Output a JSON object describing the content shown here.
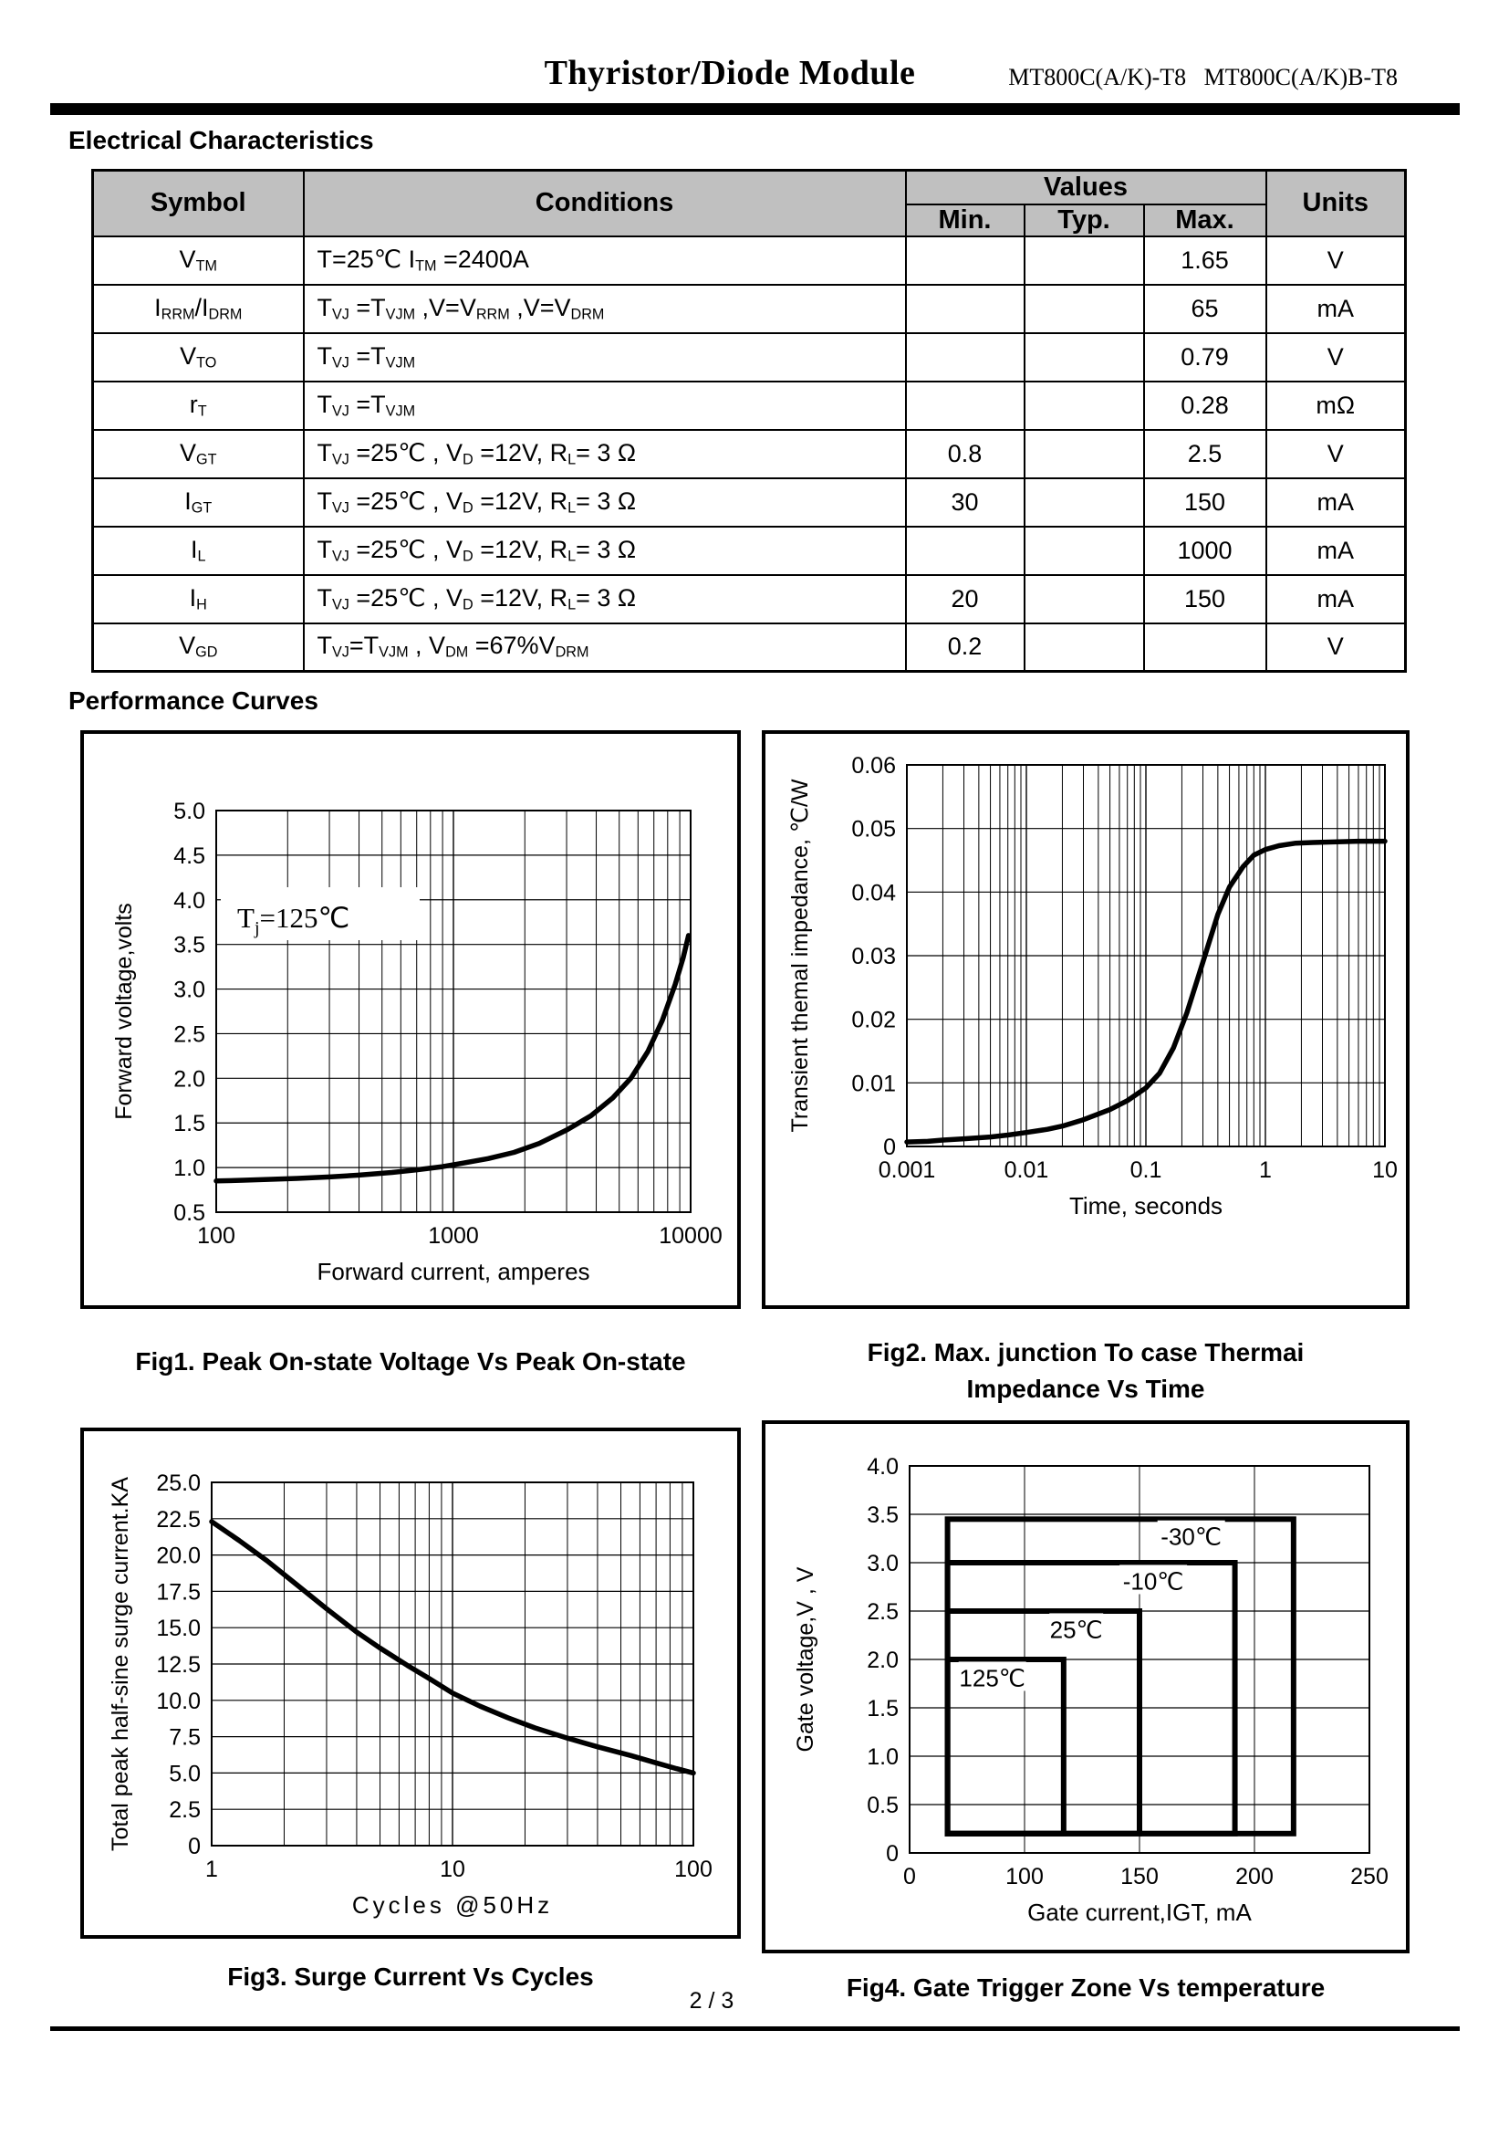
{
  "header": {
    "title": "Thyristor/Diode Module",
    "part_numbers": "MT800C(A/K)-T8   MT800C(A/K)B-T8"
  },
  "sections": {
    "electrical": "Electrical Characteristics",
    "curves": "Performance Curves"
  },
  "table": {
    "col_symbol": "Symbol",
    "col_conditions": "Conditions",
    "col_values": "Values",
    "col_min": "Min.",
    "col_typ": "Typ.",
    "col_max": "Max.",
    "col_units": "Units",
    "rows": [
      {
        "symbol": [
          [
            "V"
          ],
          [
            "TM",
            "s"
          ]
        ],
        "conditions": [
          [
            "T=25℃  I"
          ],
          [
            "TM",
            "s"
          ],
          [
            " =2400A"
          ]
        ],
        "min": "",
        "typ": "",
        "max": "1.65",
        "units": "V"
      },
      {
        "symbol": [
          [
            "I"
          ],
          [
            "RRM",
            "s"
          ],
          [
            "/I"
          ],
          [
            "DRM",
            "s"
          ]
        ],
        "conditions": [
          [
            "T"
          ],
          [
            "VJ",
            "s"
          ],
          [
            " =T"
          ],
          [
            "VJM",
            "s"
          ],
          [
            " ,V=V"
          ],
          [
            "RRM",
            "s"
          ],
          [
            " ,V=V"
          ],
          [
            "DRM",
            "s"
          ]
        ],
        "min": "",
        "typ": "",
        "max": "65",
        "units": "mA"
      },
      {
        "symbol": [
          [
            "V"
          ],
          [
            "TO",
            "s"
          ]
        ],
        "conditions": [
          [
            "T"
          ],
          [
            "VJ",
            "s"
          ],
          [
            " =T"
          ],
          [
            "VJM",
            "s"
          ]
        ],
        "min": "",
        "typ": "",
        "max": "0.79",
        "units": "V"
      },
      {
        "symbol": [
          [
            "r"
          ],
          [
            "T",
            "s"
          ]
        ],
        "conditions": [
          [
            "T"
          ],
          [
            "VJ",
            "s"
          ],
          [
            " =T"
          ],
          [
            "VJM",
            "s"
          ]
        ],
        "min": "",
        "typ": "",
        "max": "0.28",
        "units": "mΩ"
      },
      {
        "symbol": [
          [
            "V"
          ],
          [
            "GT",
            "s"
          ]
        ],
        "conditions": [
          [
            "T"
          ],
          [
            "VJ",
            "s"
          ],
          [
            " =25℃ , V"
          ],
          [
            "D",
            "s"
          ],
          [
            " =12V,   R"
          ],
          [
            "L",
            "s"
          ],
          [
            "= 3 Ω"
          ]
        ],
        "min": "0.8",
        "typ": "",
        "max": "2.5",
        "units": "V"
      },
      {
        "symbol": [
          [
            "I"
          ],
          [
            "GT",
            "s"
          ]
        ],
        "conditions": [
          [
            "T"
          ],
          [
            "VJ",
            "s"
          ],
          [
            " =25℃ , V"
          ],
          [
            "D",
            "s"
          ],
          [
            " =12V,   R"
          ],
          [
            "L",
            "s"
          ],
          [
            "= 3 Ω"
          ]
        ],
        "min": "30",
        "typ": "",
        "max": "150",
        "units": "mA"
      },
      {
        "symbol": [
          [
            "I"
          ],
          [
            "L",
            "s"
          ]
        ],
        "conditions": [
          [
            "T"
          ],
          [
            "VJ",
            "s"
          ],
          [
            " =25℃ , V"
          ],
          [
            "D",
            "s"
          ],
          [
            " =12V,   R"
          ],
          [
            "L",
            "s"
          ],
          [
            "= 3 Ω"
          ]
        ],
        "min": "",
        "typ": "",
        "max": "1000",
        "units": "mA"
      },
      {
        "symbol": [
          [
            "I"
          ],
          [
            "H",
            "s"
          ]
        ],
        "conditions": [
          [
            "T"
          ],
          [
            "VJ",
            "s"
          ],
          [
            " =25℃ , V"
          ],
          [
            "D",
            "s"
          ],
          [
            " =12V,   R"
          ],
          [
            "L",
            "s"
          ],
          [
            "= 3 Ω"
          ]
        ],
        "min": "20",
        "typ": "",
        "max": "150",
        "units": "mA"
      },
      {
        "symbol": [
          [
            "V"
          ],
          [
            "GD",
            "s"
          ]
        ],
        "conditions": [
          [
            "T"
          ],
          [
            "VJ",
            "s"
          ],
          [
            "=T"
          ],
          [
            "VJM",
            "s"
          ],
          [
            " , V"
          ],
          [
            "DM",
            "s"
          ],
          [
            " =67%V"
          ],
          [
            "DRM",
            "s"
          ]
        ],
        "min": "0.2",
        "typ": "",
        "max": "",
        "units": "V"
      }
    ]
  },
  "figures": [
    {
      "caption": "Fig1. Peak On-state Voltage Vs Peak On-state"
    },
    {
      "caption_line1": "Fig2. Max. junction To case Thermai",
      "caption_line2": "Impedance Vs Time"
    },
    {
      "caption": "Fig3. Surge Current Vs Cycles"
    },
    {
      "caption": "Fig4. Gate Trigger Zone Vs temperature"
    }
  ],
  "chart_data": [
    {
      "id": "fig1",
      "type": "line",
      "xscale": "log",
      "title": "Peak On-state Voltage Vs Peak On-state Current",
      "xlabel": "Forward current,  amperes",
      "ylabel": "Forward voltage,volts",
      "xlim": [
        100,
        10000
      ],
      "ylim": [
        0.5,
        5.0
      ],
      "ystep": 0.5,
      "grid": true,
      "xticks": [
        [
          100,
          "100"
        ],
        [
          1000,
          "1000"
        ],
        [
          10000,
          "10000"
        ]
      ],
      "yticks": [
        [
          5,
          "5.0"
        ],
        [
          4.5,
          "4.5"
        ],
        [
          4,
          "4.0"
        ],
        [
          3.5,
          "3.5"
        ],
        [
          3,
          "3.0"
        ],
        [
          2.5,
          "2.5"
        ],
        [
          2,
          "2.0"
        ],
        [
          1.5,
          "1.5"
        ],
        [
          1,
          "1.0"
        ],
        [
          0.5,
          "0.5"
        ]
      ],
      "annotation": {
        "segments": [
          [
            "T"
          ],
          [
            "j",
            "s"
          ],
          [
            "=125℃"
          ]
        ]
      },
      "points": [
        [
          100,
          0.85
        ],
        [
          130,
          0.858
        ],
        [
          170,
          0.868
        ],
        [
          220,
          0.878
        ],
        [
          300,
          0.895
        ],
        [
          400,
          0.915
        ],
        [
          550,
          0.945
        ],
        [
          700,
          0.975
        ],
        [
          900,
          1.01
        ],
        [
          1100,
          1.05
        ],
        [
          1400,
          1.1
        ],
        [
          1800,
          1.17
        ],
        [
          2300,
          1.27
        ],
        [
          3000,
          1.42
        ],
        [
          3800,
          1.58
        ],
        [
          4700,
          1.78
        ],
        [
          5600,
          2.0
        ],
        [
          6600,
          2.3
        ],
        [
          7600,
          2.65
        ],
        [
          8600,
          3.05
        ],
        [
          9300,
          3.35
        ],
        [
          9800,
          3.6
        ]
      ]
    },
    {
      "id": "fig2",
      "type": "line",
      "xscale": "log",
      "title": "Max. junction To case Thermal Impedance Vs Time",
      "xlabel": "Time,  seconds",
      "ylabel": "Transient themal impedance,  ℃/W",
      "xlim": [
        0.001,
        10
      ],
      "ylim": [
        0,
        0.06
      ],
      "ystep": 0.01,
      "grid": true,
      "xticks": [
        [
          0.001,
          "0.001"
        ],
        [
          0.01,
          "0.01"
        ],
        [
          0.1,
          "0.1"
        ],
        [
          1,
          "1"
        ],
        [
          10,
          "10"
        ]
      ],
      "yticks": [
        [
          0.06,
          "0.06"
        ],
        [
          0.05,
          "0.05"
        ],
        [
          0.04,
          "0.04"
        ],
        [
          0.03,
          "0.03"
        ],
        [
          0.02,
          "0.02"
        ],
        [
          0.01,
          "0.01"
        ],
        [
          0,
          "0"
        ]
      ],
      "points": [
        [
          0.001,
          0.0007
        ],
        [
          0.0015,
          0.0008
        ],
        [
          0.002,
          0.001
        ],
        [
          0.003,
          0.0012
        ],
        [
          0.005,
          0.0015
        ],
        [
          0.007,
          0.0018
        ],
        [
          0.01,
          0.0022
        ],
        [
          0.015,
          0.0027
        ],
        [
          0.02,
          0.0032
        ],
        [
          0.03,
          0.0042
        ],
        [
          0.05,
          0.0058
        ],
        [
          0.07,
          0.0072
        ],
        [
          0.1,
          0.0092
        ],
        [
          0.13,
          0.0115
        ],
        [
          0.17,
          0.0155
        ],
        [
          0.22,
          0.021
        ],
        [
          0.3,
          0.029
        ],
        [
          0.4,
          0.0365
        ],
        [
          0.5,
          0.0408
        ],
        [
          0.65,
          0.044
        ],
        [
          0.8,
          0.0458
        ],
        [
          1,
          0.0467
        ],
        [
          1.3,
          0.0473
        ],
        [
          1.8,
          0.0477
        ],
        [
          2.5,
          0.0478
        ],
        [
          4,
          0.0479
        ],
        [
          6,
          0.048
        ],
        [
          10,
          0.048
        ]
      ]
    },
    {
      "id": "fig3",
      "type": "line",
      "xscale": "log",
      "title": "Surge Current Vs Cycles",
      "xlabel": "Cycles  @50Hz",
      "ylabel": "Total peak half-sine surge current.KA",
      "xlim": [
        1,
        100
      ],
      "ylim": [
        0,
        25
      ],
      "ystep": 2.5,
      "grid": true,
      "xticks": [
        [
          1,
          "1"
        ],
        [
          10,
          "10"
        ],
        [
          100,
          "100"
        ]
      ],
      "yticks": [
        [
          25,
          "25.0"
        ],
        [
          22.5,
          "22.5"
        ],
        [
          20,
          "20.0"
        ],
        [
          17.5,
          "17.5"
        ],
        [
          15,
          "15.0"
        ],
        [
          12.5,
          "12.5"
        ],
        [
          10,
          "10.0"
        ],
        [
          7.5,
          "7.5"
        ],
        [
          5,
          "5.0"
        ],
        [
          2.5,
          "2.5"
        ],
        [
          0,
          "0"
        ]
      ],
      "points": [
        [
          1,
          22.3
        ],
        [
          1.3,
          21.0
        ],
        [
          1.7,
          19.6
        ],
        [
          2.2,
          18.1
        ],
        [
          3,
          16.3
        ],
        [
          4,
          14.7
        ],
        [
          5,
          13.6
        ],
        [
          6.5,
          12.4
        ],
        [
          8,
          11.5
        ],
        [
          10,
          10.5
        ],
        [
          13,
          9.6
        ],
        [
          17,
          8.8
        ],
        [
          22,
          8.1
        ],
        [
          30,
          7.4
        ],
        [
          40,
          6.8
        ],
        [
          55,
          6.2
        ],
        [
          70,
          5.7
        ],
        [
          85,
          5.3
        ],
        [
          100,
          5.0
        ]
      ]
    },
    {
      "id": "fig4",
      "type": "zones",
      "xscale": "ticks",
      "title": "Gate Trigger Zone Vs temperature",
      "xlabel": "Gate current,IGT,  mA",
      "ylabel": "Gate voltage,V ,  V",
      "ylim": [
        0,
        4.0
      ],
      "ystep": 0.5,
      "grid": true,
      "xticks": [
        [
          0,
          "0"
        ],
        [
          1,
          "100"
        ],
        [
          2,
          "150"
        ],
        [
          3,
          "200"
        ],
        [
          4,
          "250"
        ]
      ],
      "yticks": [
        [
          4,
          "4.0"
        ],
        [
          3.5,
          "3.5"
        ],
        [
          3,
          "3.0"
        ],
        [
          2.5,
          "2.5"
        ],
        [
          2,
          "2.0"
        ],
        [
          1.5,
          "1.5"
        ],
        [
          1,
          "1.0"
        ],
        [
          0.5,
          "0.5"
        ],
        [
          0,
          "0"
        ]
      ],
      "zones": [
        {
          "label": "-30℃",
          "temp_c": -30,
          "left_div": 0.33,
          "right_div": 3.34,
          "right_mA": 216,
          "top_v": 3.45,
          "bottom_v": 0.2,
          "label_div": 2.45,
          "label_v": 3.22
        },
        {
          "label": "-10℃",
          "temp_c": -10,
          "left_div": 0.33,
          "right_div": 2.83,
          "right_mA": 191,
          "top_v": 3.0,
          "bottom_v": 0.2,
          "label_div": 2.12,
          "label_v": 2.76
        },
        {
          "label": "25℃",
          "temp_c": 25,
          "left_div": 0.33,
          "right_div": 2.0,
          "right_mA": 150,
          "top_v": 2.5,
          "bottom_v": 0.2,
          "label_div": 1.45,
          "label_v": 2.26
        },
        {
          "label": "125℃",
          "temp_c": 125,
          "left_div": 0.33,
          "right_div": 1.34,
          "right_mA": 117,
          "top_v": 2.0,
          "bottom_v": 0.2,
          "label_div": 0.72,
          "label_v": 1.76
        }
      ]
    }
  ],
  "footer": {
    "page": "2 / 3"
  }
}
